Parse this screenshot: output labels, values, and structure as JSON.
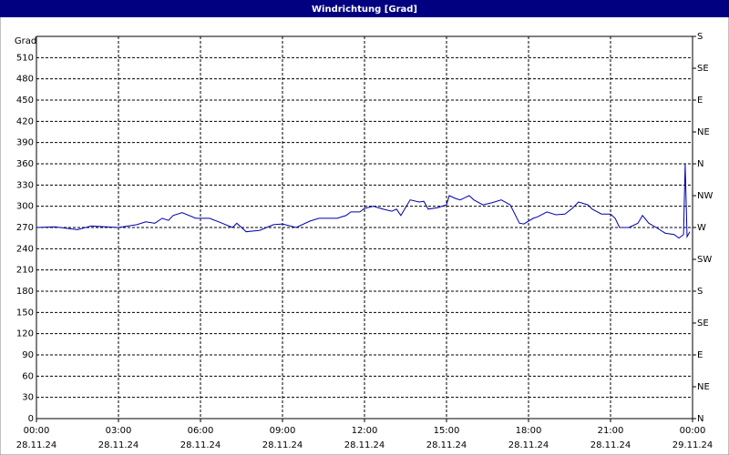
{
  "chart_data": {
    "type": "line",
    "title": "Windrichtung [Grad]",
    "y_label": "Grad",
    "color": "#0000aa",
    "grid": true,
    "xlim": [
      0,
      24
    ],
    "xticks": [
      {
        "value": 0,
        "label": "00:00",
        "date": "28.11.24"
      },
      {
        "value": 3,
        "label": "03:00",
        "date": "28.11.24"
      },
      {
        "value": 6,
        "label": "06:00",
        "date": "28.11.24"
      },
      {
        "value": 9,
        "label": "09:00",
        "date": "28.11.24"
      },
      {
        "value": 12,
        "label": "12:00",
        "date": "28.11.24"
      },
      {
        "value": 15,
        "label": "15:00",
        "date": "28.11.24"
      },
      {
        "value": 18,
        "label": "18:00",
        "date": "28.11.24"
      },
      {
        "value": 21,
        "label": "21:00",
        "date": "28.11.24"
      },
      {
        "value": 24,
        "label": "00:00",
        "date": "29.11.24"
      }
    ],
    "ylim": [
      0,
      540
    ],
    "yticks": [
      0,
      30,
      60,
      90,
      120,
      150,
      180,
      210,
      240,
      270,
      300,
      330,
      360,
      390,
      420,
      450,
      480,
      510
    ],
    "y2lim": [
      0,
      540
    ],
    "y2ticks": [
      {
        "value": 0,
        "label": "N"
      },
      {
        "value": 45,
        "label": "NE"
      },
      {
        "value": 90,
        "label": "E"
      },
      {
        "value": 135,
        "label": "SE"
      },
      {
        "value": 180,
        "label": "S"
      },
      {
        "value": 225,
        "label": "SW"
      },
      {
        "value": 270,
        "label": "W"
      },
      {
        "value": 315,
        "label": "NW"
      },
      {
        "value": 360,
        "label": "N"
      },
      {
        "value": 405,
        "label": "NE"
      },
      {
        "value": 450,
        "label": "E"
      },
      {
        "value": 495,
        "label": "SE"
      },
      {
        "value": 540,
        "label": "S"
      }
    ],
    "x": [
      0,
      0.67,
      1.5,
      2,
      3,
      3.67,
      4,
      4.33,
      4.6,
      4.83,
      5,
      5.33,
      5.83,
      6.33,
      6.67,
      7.17,
      7.33,
      7.67,
      8.17,
      8.67,
      9,
      9.5,
      10,
      10.33,
      11,
      11.33,
      11.5,
      11.83,
      12,
      12.33,
      12.67,
      13,
      13.17,
      13.33,
      13.67,
      14,
      14.17,
      14.33,
      14.67,
      15,
      15.1,
      15.33,
      15.5,
      15.83,
      16,
      16.33,
      16.67,
      17,
      17.33,
      17.67,
      17.83,
      18.17,
      18.33,
      18.67,
      19,
      19.33,
      19.6,
      19.83,
      20.17,
      20.33,
      20.67,
      21,
      21.17,
      21.33,
      21.67,
      22,
      22.17,
      22.4,
      22.67,
      23,
      23.33,
      23.5,
      23.67,
      23.73,
      23.8,
      23.9
    ],
    "values": [
      270,
      271,
      267,
      272,
      270,
      274,
      278,
      276,
      283,
      280,
      287,
      291,
      283,
      283,
      278,
      270,
      276,
      264,
      266,
      274,
      275,
      270,
      279,
      283,
      283,
      287,
      292,
      292,
      297,
      300,
      296,
      293,
      296,
      287,
      309,
      306,
      307,
      296,
      298,
      302,
      315,
      311,
      309,
      315,
      309,
      302,
      305,
      309,
      302,
      276,
      275,
      283,
      285,
      292,
      288,
      289,
      297,
      306,
      302,
      296,
      289,
      289,
      283,
      270,
      270,
      276,
      287,
      276,
      270,
      262,
      260,
      255,
      260,
      360,
      257,
      264
    ]
  }
}
